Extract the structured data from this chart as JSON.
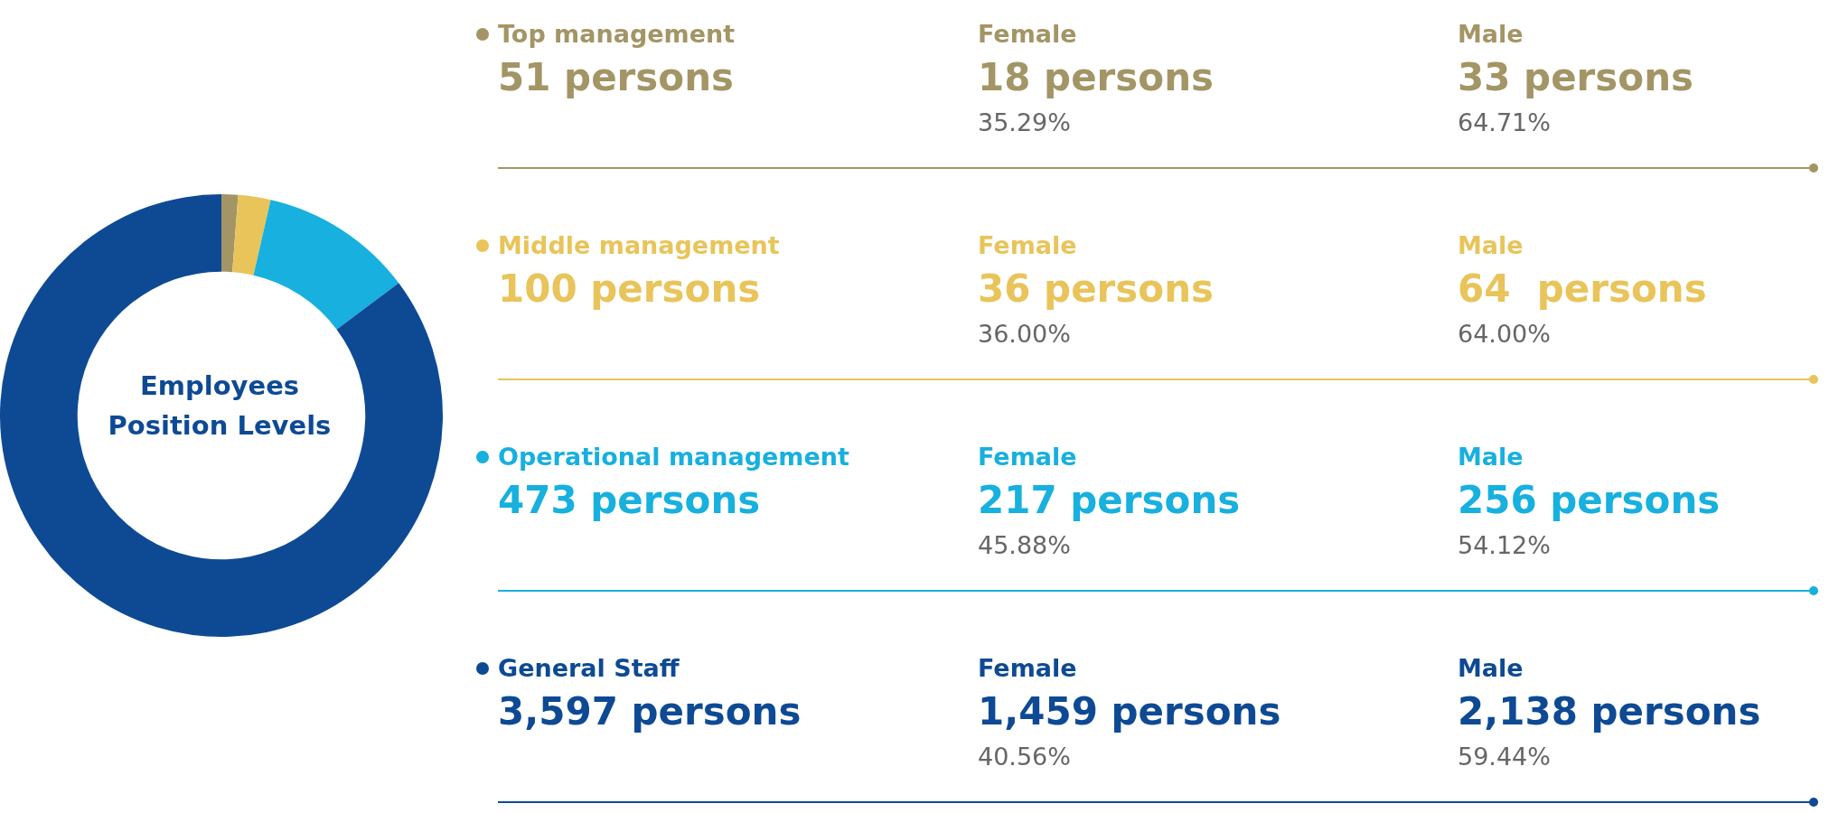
{
  "chart_data": {
    "type": "donut",
    "title": "Employees Position Levels",
    "legend": "right",
    "categories": [
      "Top management",
      "Middle management",
      "Operational management",
      "General Staff"
    ],
    "values": [
      51,
      100,
      473,
      3597
    ],
    "value_labels": [
      "51 persons",
      "100 persons",
      "473 persons",
      "3,597 persons"
    ],
    "colors": [
      "#a39565",
      "#e8c45a",
      "#17b0df",
      "#0e4a94"
    ],
    "annotations": [
      "Female",
      "18 persons",
      "35.29%",
      "Male",
      "33 persons",
      "64.71%",
      "Female",
      "36 persons",
      "36.00%",
      "Male",
      "64  persons",
      "64.00%",
      "Female",
      "217 persons",
      "45.88%",
      "Male",
      "256 persons",
      "54.12%",
      "Female",
      "1,459 persons",
      "40.56%",
      "Male",
      "2,138 persons",
      "59.44%"
    ]
  }
}
